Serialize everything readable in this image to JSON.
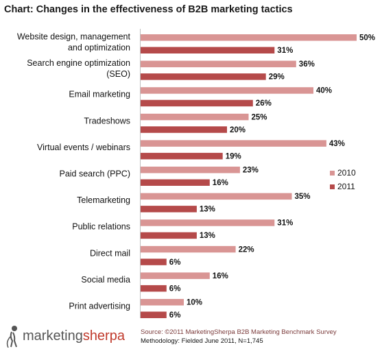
{
  "chart_data": {
    "type": "bar",
    "orientation": "horizontal",
    "title": "Chart: Changes in the effectiveness of B2B marketing tactics",
    "categories": [
      [
        "Website design, management",
        "and optimization"
      ],
      [
        "Search engine optimization",
        "(SEO)"
      ],
      [
        "Email marketing"
      ],
      [
        "Tradeshows"
      ],
      [
        "Virtual events / webinars"
      ],
      [
        "Paid search (PPC)"
      ],
      [
        "Telemarketing"
      ],
      [
        "Public relations"
      ],
      [
        "Direct mail"
      ],
      [
        "Social media"
      ],
      [
        "Print advertising"
      ]
    ],
    "series": [
      {
        "name": "2010",
        "color": "#d99594",
        "values": [
          50,
          36,
          40,
          25,
          43,
          23,
          35,
          31,
          22,
          16,
          10
        ]
      },
      {
        "name": "2011",
        "color": "#b54a4a",
        "values": [
          31,
          29,
          26,
          20,
          19,
          16,
          13,
          13,
          6,
          6,
          6
        ]
      }
    ],
    "value_suffix": "%",
    "xlim": [
      0,
      50
    ],
    "legend_position": "right",
    "grid": false
  },
  "footer": {
    "logo_part1": "marketing",
    "logo_part2": "sherpa",
    "source_prefix": "Source: ",
    "source_text": "©2011 MarketingSherpa B2B Marketing Benchmark Survey",
    "methodology": "Methodology: Fielded June 2011, N=1,745",
    "logo_color": "#c0392b"
  }
}
